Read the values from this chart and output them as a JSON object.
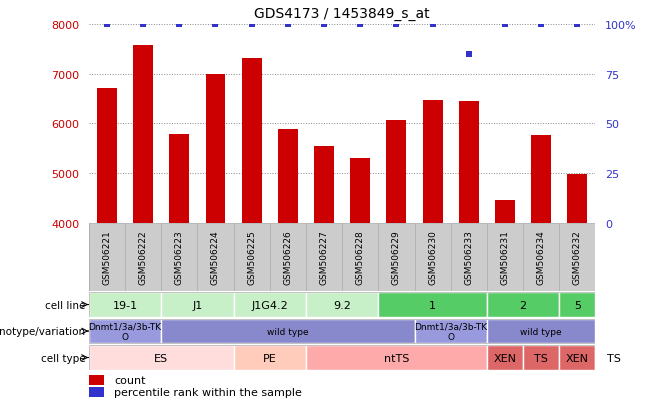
{
  "title": "GDS4173 / 1453849_s_at",
  "samples": [
    "GSM506221",
    "GSM506222",
    "GSM506223",
    "GSM506224",
    "GSM506225",
    "GSM506226",
    "GSM506227",
    "GSM506228",
    "GSM506229",
    "GSM506230",
    "GSM506233",
    "GSM506231",
    "GSM506234",
    "GSM506232"
  ],
  "counts": [
    6700,
    7580,
    5780,
    6990,
    7310,
    5890,
    5540,
    5290,
    6060,
    6460,
    6440,
    4450,
    5760,
    4980
  ],
  "percentile_ranks": [
    100,
    100,
    100,
    100,
    100,
    100,
    100,
    100,
    100,
    100,
    85,
    100,
    100,
    100
  ],
  "ylim_left": [
    4000,
    8000
  ],
  "ylim_right": [
    0,
    100
  ],
  "bar_color": "#cc0000",
  "dot_color": "#3333cc",
  "grid_color": "#888888",
  "bar_width": 0.55,
  "cell_line_data": [
    {
      "label": "19-1",
      "start": 0,
      "end": 2,
      "color": "#c8f0c8"
    },
    {
      "label": "J1",
      "start": 2,
      "end": 4,
      "color": "#c8f0c8"
    },
    {
      "label": "J1G4.2",
      "start": 4,
      "end": 6,
      "color": "#c8f0c8"
    },
    {
      "label": "9.2",
      "start": 6,
      "end": 8,
      "color": "#c8f0c8"
    },
    {
      "label": "1",
      "start": 8,
      "end": 11,
      "color": "#55cc66"
    },
    {
      "label": "2",
      "start": 11,
      "end": 13,
      "color": "#55cc66"
    },
    {
      "label": "5",
      "start": 13,
      "end": 14,
      "color": "#55cc66"
    }
  ],
  "genotype_data": [
    {
      "label": "Dnmt1/3a/3b-TK\nO",
      "start": 0,
      "end": 2,
      "color": "#9999dd"
    },
    {
      "label": "wild type",
      "start": 2,
      "end": 9,
      "color": "#8888cc"
    },
    {
      "label": "Dnmt1/3a/3b-TK\nO",
      "start": 9,
      "end": 11,
      "color": "#9999dd"
    },
    {
      "label": "wild type",
      "start": 11,
      "end": 14,
      "color": "#8888cc"
    }
  ],
  "celltype_data": [
    {
      "label": "ES",
      "start": 0,
      "end": 4,
      "color": "#ffdddd"
    },
    {
      "label": "PE",
      "start": 4,
      "end": 6,
      "color": "#ffccbb"
    },
    {
      "label": "ntTS",
      "start": 6,
      "end": 11,
      "color": "#ffaaaa"
    },
    {
      "label": "XEN",
      "start": 11,
      "end": 12,
      "color": "#dd6666"
    },
    {
      "label": "TS",
      "start": 12,
      "end": 13,
      "color": "#dd6666"
    },
    {
      "label": "XEN",
      "start": 13,
      "end": 14,
      "color": "#dd6666"
    },
    {
      "label": "TS",
      "start": 14,
      "end": 15,
      "color": "#dd6666"
    }
  ],
  "row_labels": [
    "cell line",
    "genotype/variation",
    "cell type"
  ],
  "left_axis_color": "#cc0000",
  "right_axis_color": "#3333cc",
  "xtick_bg": "#cccccc",
  "legend_bar_label": "count",
  "legend_dot_label": "percentile rank within the sample"
}
